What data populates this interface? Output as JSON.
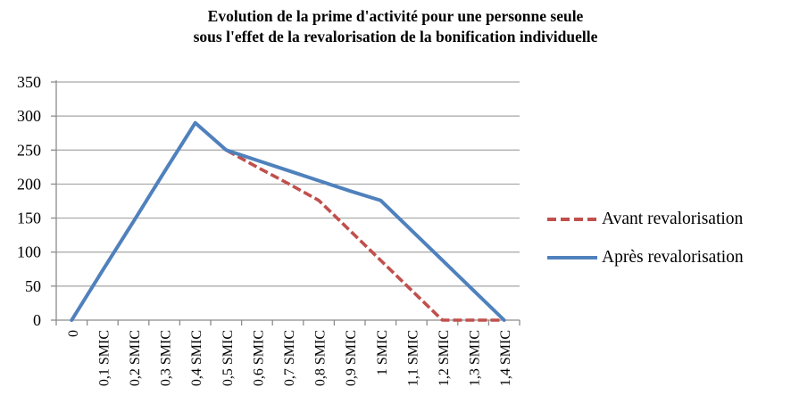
{
  "title": {
    "line1": "Evolution de la prime d'activité pour une personne seule",
    "line2": "sous l'effet de la revalorisation de la bonification individuelle"
  },
  "chart_data": {
    "type": "line",
    "title": "Evolution de la prime d'activité pour une personne seule sous l'effet de la revalorisation de la bonification individuelle",
    "categories": [
      "0",
      "0,1 SMIC",
      "0,2 SMIC",
      "0,3 SMIC",
      "0,4 SMIC",
      "0,5 SMIC",
      "0,6 SMIC",
      "0,7 SMIC",
      "0,8 SMIC",
      "0,9 SMIC",
      "1 SMIC",
      "1,1 SMIC",
      "1,2 SMIC",
      "1,3 SMIC",
      "1,4 SMIC"
    ],
    "series": [
      {
        "name": "Avant revalorisation",
        "color": "#C0504D",
        "style": "dashed",
        "values": [
          0,
          73,
          145,
          218,
          290,
          250,
          225,
          201,
          176,
          132,
          88,
          44,
          0,
          0,
          0
        ]
      },
      {
        "name": "Après revalorisation",
        "color": "#4F81BD",
        "style": "solid",
        "values": [
          0,
          73,
          145,
          218,
          290,
          250,
          235,
          220,
          205,
          190,
          176,
          132,
          88,
          44,
          0
        ]
      }
    ],
    "xlabel": "",
    "ylabel": "",
    "ylim": [
      0,
      350
    ],
    "yticks": [
      0,
      50,
      100,
      150,
      200,
      250,
      300,
      350
    ],
    "x_tick_label_rotation_deg": 90,
    "grid": "horizontal",
    "legend_position": "right"
  },
  "colors": {
    "background": "#FFFFFF",
    "gridline": "#A6A6A6",
    "axis": "#8C8C8C",
    "text": "#000000",
    "series_avant": "#C0504D",
    "series_apres": "#4F81BD"
  }
}
